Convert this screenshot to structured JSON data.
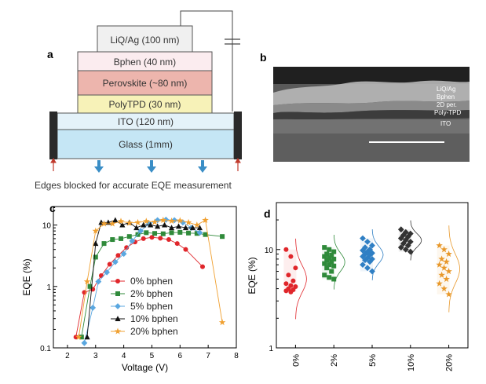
{
  "panels": {
    "a": "a",
    "b": "b",
    "c": "c",
    "d": "d"
  },
  "device_stack": {
    "layers": [
      {
        "id": "liq",
        "label": "LiQ/Ag (100 nm)",
        "color": "#f0f0f0"
      },
      {
        "id": "bphen",
        "label": "Bphen (40 nm)",
        "color": "#fbecef"
      },
      {
        "id": "perovskite",
        "label": "Perovskite (~80 nm)",
        "color": "#edb5ad"
      },
      {
        "id": "polytpd",
        "label": "PolyTPD (30 nm)",
        "color": "#f7f2b8"
      },
      {
        "id": "ito",
        "label": "ITO (120 nm)",
        "color": "#e4f2f9"
      },
      {
        "id": "glass",
        "label": "Glass (1mm)",
        "color": "#c5e6f5"
      }
    ],
    "caption": "Edges blocked for accurate EQE measurement",
    "colors": {
      "light_arrow": "#3a8ec6",
      "edge_arrow": "#c0392b",
      "blocker": "#2a2a2a"
    }
  },
  "sem": {
    "labels": [
      "LiQ/Ag",
      "Bphen",
      "2D per.",
      "Poly-TPD",
      "ITO"
    ]
  },
  "chart_data": [
    {
      "type": "line",
      "panel": "c",
      "xlabel": "Voltage (V)",
      "ylabel": "EQE (%)",
      "xlim": [
        1.5,
        8
      ],
      "ylim": [
        0.1,
        20
      ],
      "yscale": "log",
      "xticks": [
        "2",
        "3",
        "4",
        "5",
        "6",
        "7",
        "8"
      ],
      "yticks": [
        "0.1",
        "1",
        "10"
      ],
      "legend_position": "lower-left",
      "series": [
        {
          "name": "0% bphen",
          "color": "#e0262b",
          "marker": "circle",
          "x": [
            2.3,
            2.6,
            2.9,
            3.2,
            3.5,
            3.8,
            4.1,
            4.4,
            4.7,
            5.0,
            5.3,
            5.6,
            5.9,
            6.2,
            6.8
          ],
          "y": [
            0.15,
            0.8,
            0.9,
            1.5,
            2.3,
            3.2,
            4.3,
            5.3,
            6.0,
            6.3,
            6.1,
            5.8,
            5.0,
            4.0,
            2.1
          ]
        },
        {
          "name": "2% bphen",
          "color": "#2f8a3a",
          "marker": "square",
          "x": [
            2.5,
            2.8,
            3.0,
            3.3,
            3.6,
            3.9,
            4.2,
            4.5,
            4.8,
            5.1,
            5.4,
            5.7,
            6.0,
            6.3,
            6.6,
            6.9,
            7.5
          ],
          "y": [
            0.15,
            1.0,
            3.0,
            5.0,
            5.8,
            6.0,
            6.5,
            7.0,
            7.5,
            7.3,
            7.2,
            7.5,
            7.6,
            7.4,
            7.3,
            7.0,
            6.5
          ]
        },
        {
          "name": "5% bphen",
          "color": "#5aa7e0",
          "marker": "diamond",
          "x": [
            2.6,
            2.9,
            3.1,
            3.4,
            3.7,
            4.0,
            4.3,
            4.6,
            4.9,
            5.2,
            5.5,
            5.8,
            6.1,
            6.4,
            6.7
          ],
          "y": [
            0.12,
            0.45,
            1.2,
            1.7,
            2.5,
            3.4,
            5.5,
            8.0,
            10.5,
            12.0,
            12.2,
            12.0,
            11.0,
            9.0,
            7.5
          ]
        },
        {
          "name": "10% bphen",
          "color": "#111111",
          "marker": "triangle",
          "x": [
            2.7,
            3.0,
            3.2,
            3.45,
            3.7,
            3.95,
            4.2,
            4.45,
            4.7,
            4.95,
            5.2,
            5.45,
            5.7,
            5.95,
            6.2,
            6.45,
            6.7
          ],
          "y": [
            0.15,
            5.0,
            11.0,
            11.0,
            12.0,
            10.0,
            11.0,
            9.0,
            10.0,
            10.0,
            9.5,
            10.0,
            9.0,
            9.5,
            9.0,
            9.0,
            9.0
          ]
        },
        {
          "name": "20% bphen",
          "color": "#f0a030",
          "marker": "star",
          "x": [
            2.4,
            2.7,
            3.0,
            3.3,
            3.6,
            3.9,
            4.2,
            4.5,
            4.8,
            5.1,
            5.4,
            5.7,
            6.0,
            6.3,
            6.6,
            6.9,
            7.5
          ],
          "y": [
            0.15,
            1.2,
            8.0,
            10.5,
            10.5,
            11.5,
            10.8,
            11.0,
            11.5,
            11.2,
            12.0,
            11.6,
            11.8,
            11.0,
            10.0,
            12.0,
            0.26
          ]
        }
      ]
    },
    {
      "type": "scatter",
      "panel": "d",
      "ylabel": "EQE (%)",
      "yscale": "log",
      "ylim": [
        1,
        30
      ],
      "yticks": [
        "1",
        "10"
      ],
      "categories": [
        "0%",
        "2%",
        "5%",
        "10%",
        "20%"
      ],
      "series": [
        {
          "name": "0%",
          "color": "#e0262b",
          "marker": "circle",
          "values": [
            10.0,
            8.5,
            6.5,
            5.5,
            4.8,
            4.5,
            4.3,
            4.2,
            4.0,
            3.9,
            3.8,
            3.7
          ]
        },
        {
          "name": "2%",
          "color": "#2f8a3a",
          "marker": "square",
          "values": [
            10.5,
            10.0,
            9.5,
            9.0,
            8.8,
            8.5,
            8.2,
            8.0,
            7.8,
            7.5,
            7.2,
            7.0,
            6.8,
            6.5,
            6.0,
            5.5,
            5.2,
            5.0
          ]
        },
        {
          "name": "5%",
          "color": "#2f7fc4",
          "marker": "diamond",
          "values": [
            13.0,
            12.0,
            11.0,
            10.5,
            10.0,
            9.8,
            9.5,
            9.2,
            9.0,
            8.8,
            8.5,
            8.2,
            8.0,
            7.8,
            7.5,
            7.0,
            6.5,
            6.0
          ]
        },
        {
          "name": "10%",
          "color": "#333333",
          "marker": "diamond",
          "values": [
            16.0,
            15.0,
            14.5,
            14.0,
            13.5,
            13.0,
            12.5,
            12.0,
            11.5,
            11.0,
            10.5,
            10.0,
            9.5
          ]
        },
        {
          "name": "20%",
          "color": "#e8982a",
          "marker": "star",
          "values": [
            11.0,
            10.0,
            9.0,
            8.0,
            7.5,
            7.0,
            6.5,
            6.0,
            5.5,
            5.0,
            4.5,
            4.0,
            3.5
          ]
        }
      ]
    }
  ]
}
